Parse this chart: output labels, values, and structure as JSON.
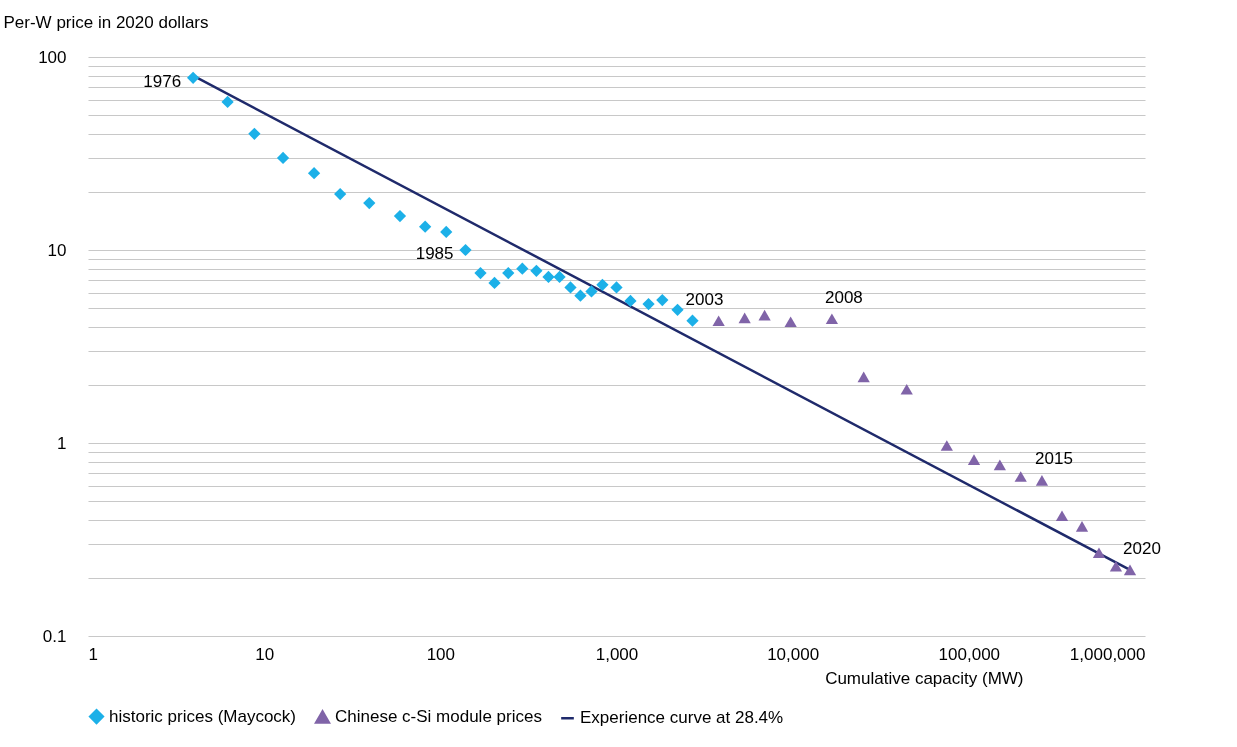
{
  "chart_data": {
    "type": "scatter",
    "ylabel": "Per-W price in 2020 dollars",
    "xlabel": "Cumulative capacity (MW)",
    "log": "xy",
    "grid": "y",
    "legend": "bottom",
    "xlim": [
      1,
      1000000
    ],
    "xticks": [
      1,
      10,
      100,
      {
        "value": 1000,
        "label": "1,000"
      },
      {
        "value": 10000,
        "label": "10,000"
      },
      {
        "value": 100000,
        "label": "100,000"
      },
      {
        "value": 1000000,
        "label": "1,000,000"
      }
    ],
    "ylim": [
      0.1,
      100
    ],
    "yticks": [
      0.1,
      {
        "value": 0.2,
        "label": null
      },
      {
        "value": 0.3,
        "label": null
      },
      {
        "value": 0.4,
        "label": null
      },
      {
        "value": 0.5,
        "label": null
      },
      {
        "value": 0.6,
        "label": null
      },
      {
        "value": 0.7,
        "label": null
      },
      {
        "value": 0.8,
        "label": null
      },
      {
        "value": 0.9,
        "label": null
      },
      1,
      {
        "value": 2,
        "label": null
      },
      {
        "value": 3,
        "label": null
      },
      {
        "value": 4,
        "label": null
      },
      {
        "value": 5,
        "label": null
      },
      {
        "value": 6,
        "label": null
      },
      {
        "value": 7,
        "label": null
      },
      {
        "value": 8,
        "label": null
      },
      {
        "value": 9,
        "label": null
      },
      10,
      {
        "value": 20,
        "label": null
      },
      {
        "value": 30,
        "label": null
      },
      {
        "value": 40,
        "label": null
      },
      {
        "value": 50,
        "label": null
      },
      {
        "value": 60,
        "label": null
      },
      {
        "value": 70,
        "label": null
      },
      {
        "value": 80,
        "label": null
      },
      {
        "value": 90,
        "label": null
      },
      100
    ],
    "series": [
      {
        "name": "historic prices (Maycock)",
        "color": "#1cb0e8",
        "marker": "diamond",
        "x": [
          3.95,
          6.2,
          8.8,
          12.8,
          19.2,
          27,
          39.5,
          59,
          82,
          108,
          139,
          169,
          203,
          243,
          292,
          351,
          411,
          475,
          548,
          624,
          721,
          832,
          1000,
          1200,
          1520,
          1820,
          2220,
          2700
        ],
        "values": [
          78,
          58.5,
          40,
          30,
          25,
          19.5,
          17.5,
          15,
          13.2,
          12.4,
          10,
          7.6,
          6.75,
          7.6,
          8,
          7.8,
          7.25,
          7.25,
          6.4,
          5.8,
          6.1,
          6.6,
          6.4,
          5.45,
          5.25,
          5.5,
          4.9,
          4.3
        ]
      },
      {
        "name": "Chinese c-Si module prices",
        "color": "#8064a8",
        "marker": "triangle",
        "x": [
          3800,
          5340,
          6930,
          9740,
          16700,
          25300,
          44400,
          75000,
          107000,
          150000,
          197000,
          260000,
          338000,
          439000,
          548000,
          684000,
          822000
        ],
        "values": [
          4.3,
          4.45,
          4.6,
          4.25,
          4.4,
          2.2,
          1.9,
          0.97,
          0.82,
          0.77,
          0.67,
          0.64,
          0.42,
          0.37,
          0.27,
          0.23,
          0.22
        ]
      },
      {
        "name": "Experience curve at 28.4%",
        "color": "#1f2a6b",
        "type": "line",
        "line_style": "solid",
        "x": [
          3.95,
          822000
        ],
        "values": [
          80,
          0.22
        ]
      }
    ],
    "annotations": [
      {
        "text": "1976",
        "x": 3.95,
        "y": 78
      },
      {
        "text": "1985",
        "x": 139,
        "y": 10
      },
      {
        "text": "2003",
        "x": 2700,
        "y": 4.3
      },
      {
        "text": "2008",
        "x": 16700,
        "y": 4.4
      },
      {
        "text": "2015",
        "x": 260000,
        "y": 0.64
      },
      {
        "text": "2020",
        "x": 822000,
        "y": 0.22
      }
    ]
  }
}
